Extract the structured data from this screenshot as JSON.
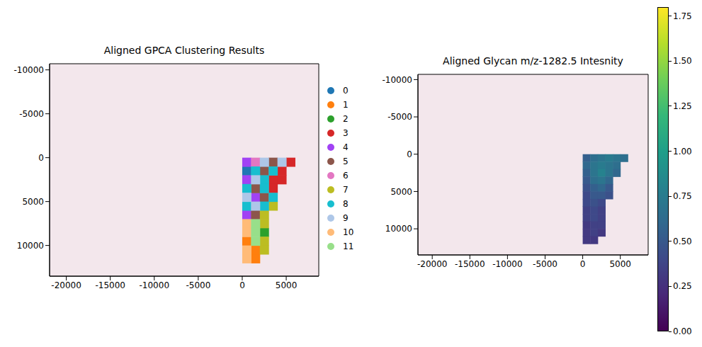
{
  "chart_data": [
    {
      "type": "scatter",
      "title": "Aligned GPCA Clustering Results",
      "marker": "square",
      "legend": "right",
      "xlim": [
        -21900,
        8700
      ],
      "ylim": [
        13500,
        -10700
      ],
      "xticks": [
        -20000,
        -15000,
        -10000,
        -5000,
        0,
        5000
      ],
      "yticks": [
        -10000,
        -5000,
        0,
        5000,
        10000
      ],
      "series": [
        {
          "name": "0",
          "color": "#1f77b4",
          "x": [
            500
          ],
          "y": [
            1500
          ]
        },
        {
          "name": "1",
          "color": "#ff7f0e",
          "x": [
            500,
            1500,
            1500
          ],
          "y": [
            9500,
            10500,
            11500
          ]
        },
        {
          "name": "2",
          "color": "#2ca02c",
          "x": [
            2500
          ],
          "y": [
            8500
          ]
        },
        {
          "name": "3",
          "color": "#d62728",
          "x": [
            5500,
            4500,
            3500,
            4500,
            3500
          ],
          "y": [
            500,
            1500,
            2500,
            2500,
            3500
          ]
        },
        {
          "name": "4",
          "color": "#a142f4",
          "x": [
            500,
            500,
            1500,
            500
          ],
          "y": [
            500,
            2500,
            4500,
            6500
          ]
        },
        {
          "name": "5",
          "color": "#8c564b",
          "x": [
            3500,
            2500,
            1500,
            2500,
            1500
          ],
          "y": [
            500,
            1500,
            3500,
            4500,
            6500
          ]
        },
        {
          "name": "6",
          "color": "#e377c2",
          "x": [
            1500
          ],
          "y": [
            500
          ]
        },
        {
          "name": "7",
          "color": "#bcbd22",
          "x": [
            3500,
            2500,
            2500,
            2500,
            2500
          ],
          "y": [
            5500,
            6500,
            7500,
            9500,
            10500
          ]
        },
        {
          "name": "8",
          "color": "#17becf",
          "x": [
            1500,
            3500,
            2500,
            500,
            2500,
            3500,
            500,
            2500
          ],
          "y": [
            1500,
            1500,
            2500,
            3500,
            3500,
            4500,
            5500,
            5500
          ]
        },
        {
          "name": "9",
          "color": "#aec7e8",
          "x": [
            2500,
            4500,
            1500,
            500,
            1500
          ],
          "y": [
            500,
            500,
            2500,
            4500,
            5500
          ]
        },
        {
          "name": "10",
          "color": "#ffbb78",
          "x": [
            500,
            500,
            500,
            500
          ],
          "y": [
            7500,
            8500,
            10500,
            11500
          ]
        },
        {
          "name": "11",
          "color": "#98df8a",
          "x": [
            1500,
            1500,
            1500
          ],
          "y": [
            7500,
            8500,
            9500
          ]
        }
      ]
    },
    {
      "type": "heatmap",
      "title": "Aligned Glycan m/z-1282.5 Intesnity",
      "xlim": [
        -21900,
        8700
      ],
      "ylim": [
        13500,
        -10700
      ],
      "xticks": [
        -20000,
        -15000,
        -10000,
        -5000,
        0,
        5000
      ],
      "yticks": [
        -10000,
        -5000,
        0,
        5000,
        10000
      ],
      "cells": {
        "x": [
          500,
          1500,
          2500,
          3500,
          4500,
          5500,
          500,
          1500,
          2500,
          3500,
          4500,
          500,
          1500,
          2500,
          3500,
          4500,
          500,
          1500,
          2500,
          3500,
          500,
          1500,
          2500,
          3500,
          500,
          1500,
          2500,
          3500,
          500,
          1500,
          2500,
          500,
          1500,
          2500,
          500,
          1500,
          2500,
          500,
          1500,
          2500,
          500,
          1500,
          2500,
          500,
          1500
        ],
        "y": [
          500,
          500,
          500,
          500,
          500,
          500,
          1500,
          1500,
          1500,
          1500,
          1500,
          2500,
          2500,
          2500,
          2500,
          2500,
          3500,
          3500,
          3500,
          3500,
          4500,
          4500,
          4500,
          4500,
          5500,
          5500,
          5500,
          5500,
          6500,
          6500,
          6500,
          7500,
          7500,
          7500,
          8500,
          8500,
          8500,
          9500,
          9500,
          9500,
          10500,
          10500,
          10500,
          11500,
          11500
        ],
        "values": [
          0.55,
          0.65,
          0.7,
          0.75,
          0.7,
          0.65,
          0.6,
          0.7,
          0.75,
          0.7,
          0.65,
          0.55,
          0.7,
          0.8,
          0.7,
          0.6,
          0.5,
          0.65,
          0.7,
          0.6,
          0.45,
          0.55,
          0.6,
          0.5,
          0.4,
          0.5,
          0.5,
          0.45,
          0.4,
          0.45,
          0.4,
          0.35,
          0.4,
          0.35,
          0.35,
          0.4,
          0.35,
          0.3,
          0.35,
          0.35,
          0.3,
          0.35,
          0.3,
          0.3,
          0.3
        ]
      },
      "colorbar": {
        "range": [
          0,
          1.8
        ],
        "ticks": [
          {
            "value": 0,
            "label": "0.00"
          },
          {
            "value": 0.25,
            "label": "0.25"
          },
          {
            "value": 0.5,
            "label": "0.50"
          },
          {
            "value": 0.75,
            "label": "0.75"
          },
          {
            "value": 1,
            "label": "1.00"
          },
          {
            "value": 1.25,
            "label": "1.25"
          },
          {
            "value": 1.5,
            "label": "1.50"
          },
          {
            "value": 1.75,
            "label": "1.75"
          }
        ]
      }
    }
  ]
}
